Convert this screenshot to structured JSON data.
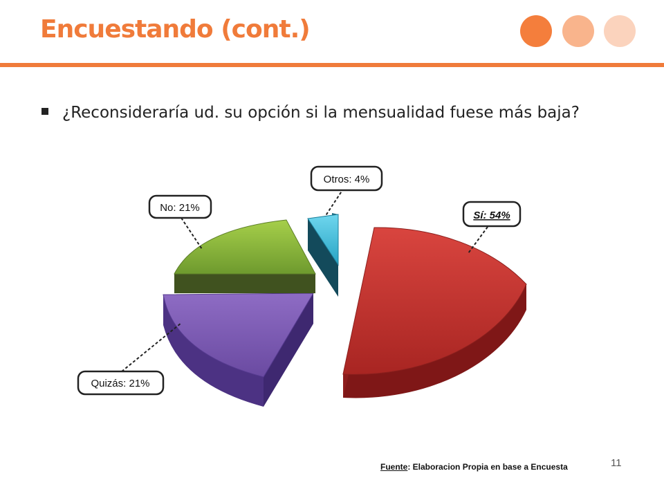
{
  "slide": {
    "title": "Encuestando (cont.)",
    "question": "¿Reconsideraría ud. su opción si la mensualidad fuese más baja?",
    "source_label": "Fuente",
    "source_text": ": Elaboracion Propia en base a Encuesta",
    "page_number": "11",
    "accent_color": "#f07b3a"
  },
  "chart_data": {
    "type": "pie",
    "title": "",
    "slices": [
      {
        "label": "Sí: 54%",
        "category": "Sí",
        "value": 54,
        "color": "#c0302d",
        "side": "#7a1515"
      },
      {
        "label": "Quizás: 21%",
        "category": "Quizás",
        "value": 21,
        "color": "#7b59b0",
        "side": "#4a2f7e"
      },
      {
        "label": "No: 21%",
        "category": "No",
        "value": 21,
        "color": "#7fae33",
        "side": "#405222"
      },
      {
        "label": "Otros: 4%",
        "category": "Otros",
        "value": 4,
        "color": "#2ab0d0",
        "side": "#154f62"
      }
    ],
    "exploded": true,
    "style": "3d"
  }
}
